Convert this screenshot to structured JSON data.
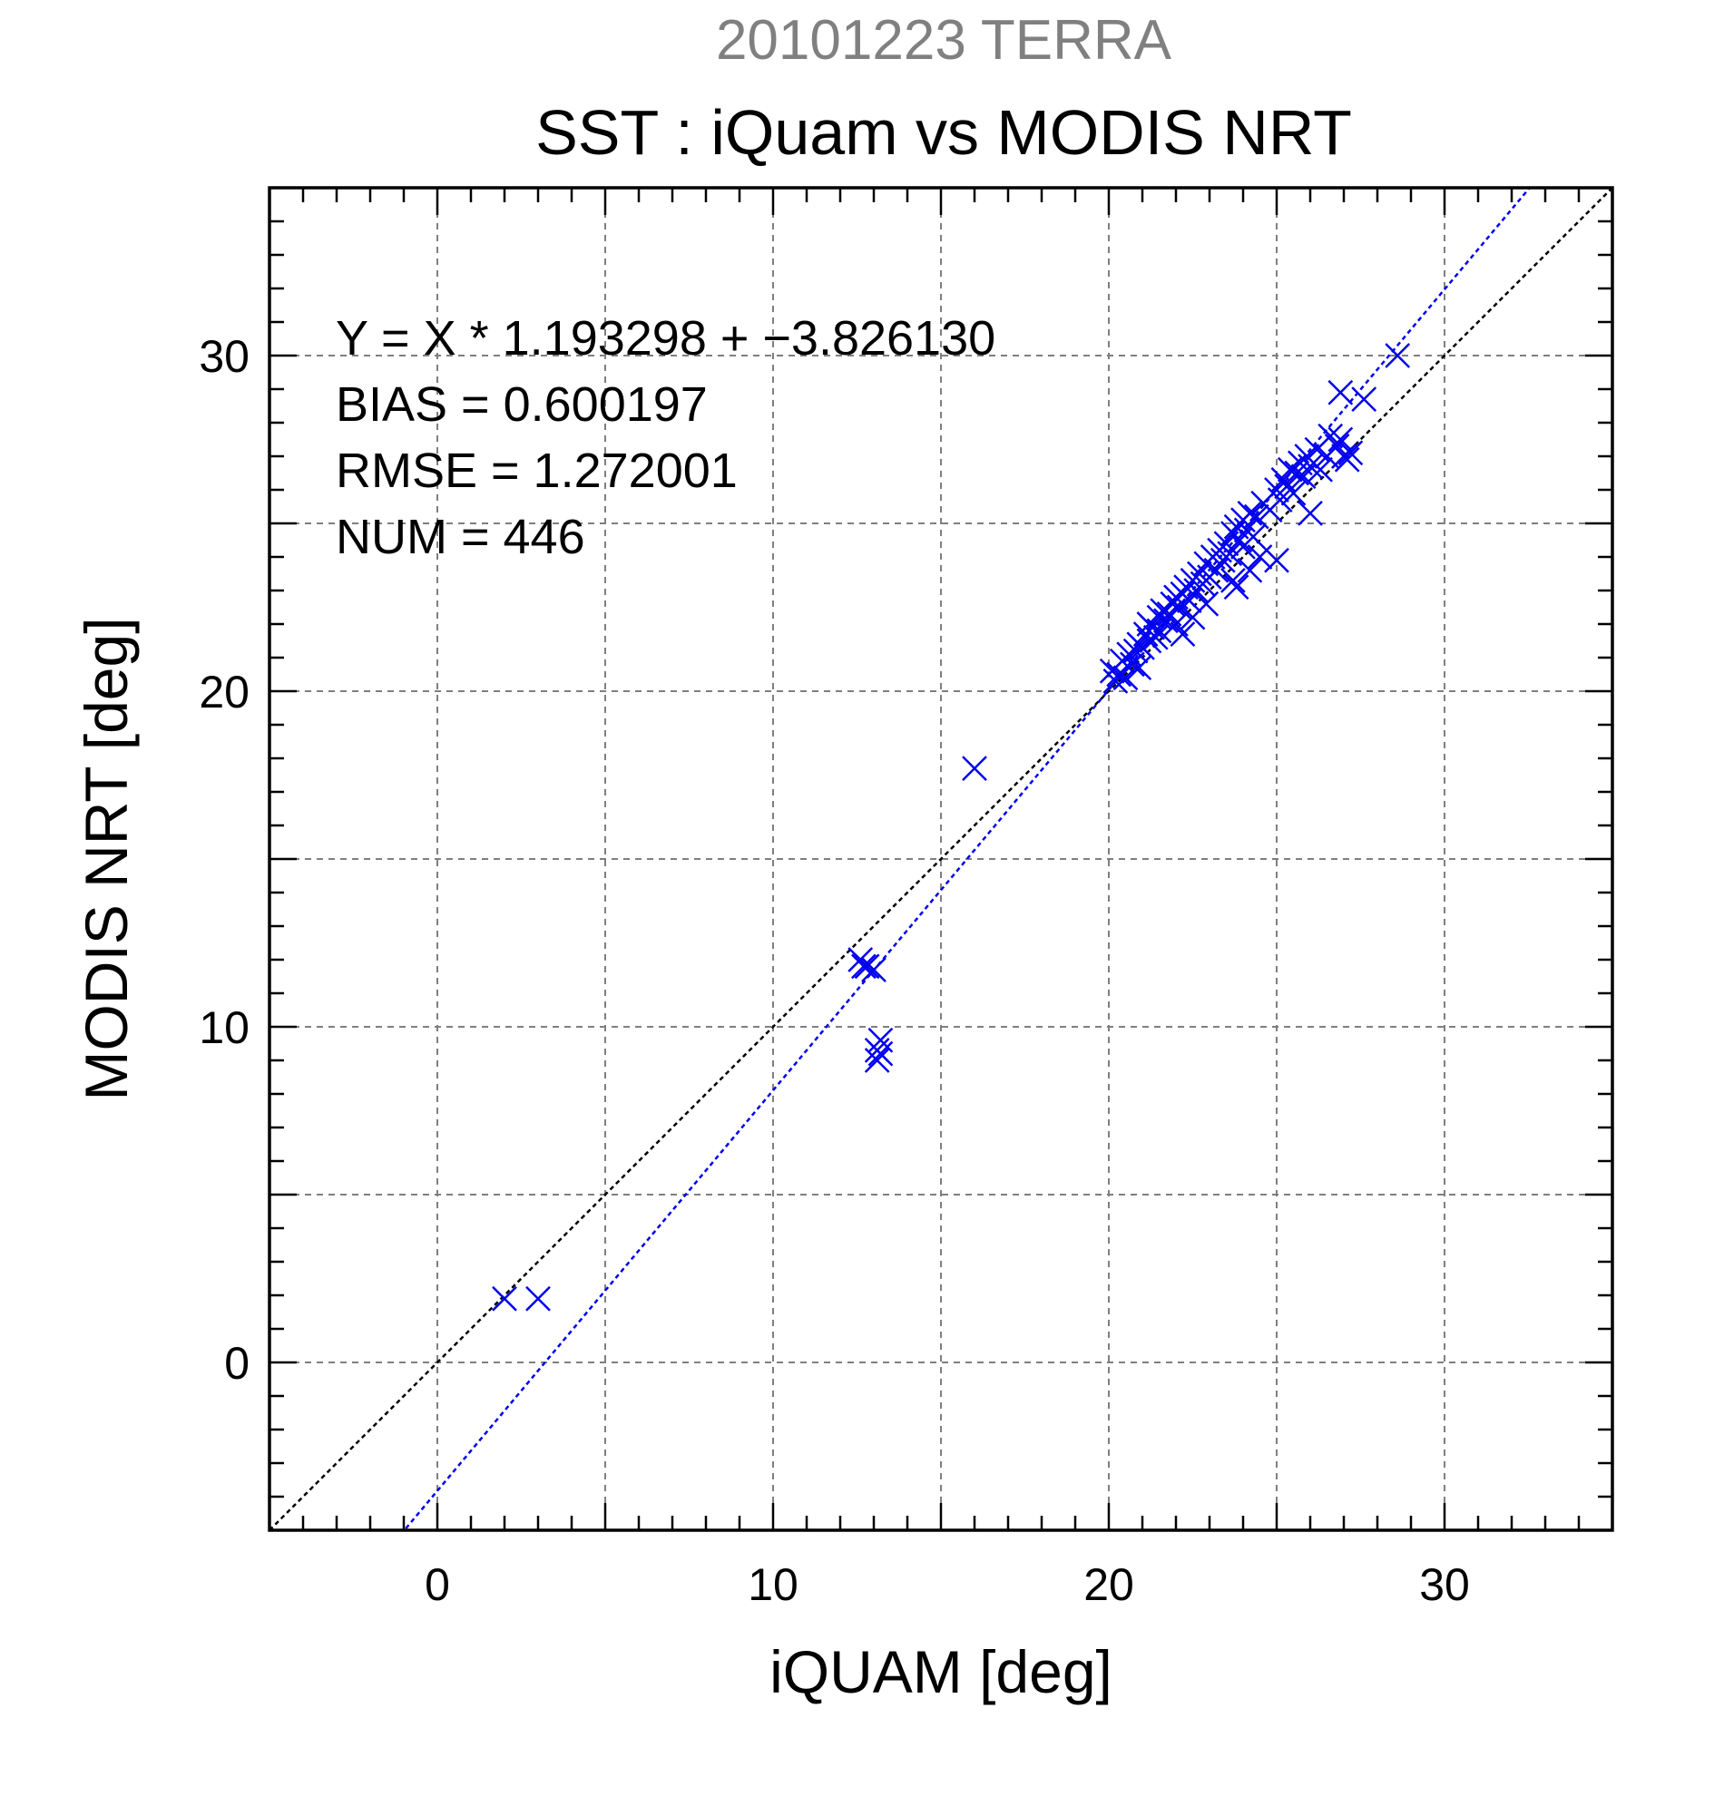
{
  "figure": {
    "suptitle": "20101223 TERRA",
    "title": "SST : iQuam vs MODIS NRT",
    "stats": [
      "Y = X * 1.193298 + −3.826130",
      "BIAS = 0.600197",
      "RMSE = 1.272001",
      "NUM = 446"
    ]
  },
  "chart_data": {
    "type": "scatter",
    "xlabel": "iQUAM [deg]",
    "ylabel": "MODIS NRT [deg]",
    "xlim": [
      -5,
      35
    ],
    "ylim": [
      -5,
      35
    ],
    "xticks": [
      0,
      10,
      20,
      30
    ],
    "yticks": [
      0,
      10,
      20,
      30
    ],
    "xtick_labels": [
      "0",
      "10",
      "20",
      "30"
    ],
    "ytick_labels": [
      "0",
      "10",
      "20",
      "30"
    ],
    "grid": true,
    "marker": "x",
    "marker_color": "#0000ee",
    "fit": {
      "slope": 1.193298,
      "intercept": -3.82613,
      "color": "#0000ee",
      "style": "dotted"
    },
    "identity_line": {
      "color": "#000000",
      "style": "dotted"
    },
    "points": [
      [
        2.0,
        1.9
      ],
      [
        3.0,
        1.9
      ],
      [
        12.6,
        12.0
      ],
      [
        12.7,
        11.8
      ],
      [
        12.8,
        11.8
      ],
      [
        13.0,
        11.7
      ],
      [
        13.1,
        9.0
      ],
      [
        13.1,
        9.3
      ],
      [
        13.2,
        9.6
      ],
      [
        13.2,
        9.2
      ],
      [
        16.0,
        17.7
      ],
      [
        20.1,
        20.6
      ],
      [
        20.2,
        20.3
      ],
      [
        20.3,
        20.5
      ],
      [
        20.4,
        20.9
      ],
      [
        20.5,
        20.4
      ],
      [
        20.6,
        21.1
      ],
      [
        20.7,
        20.8
      ],
      [
        20.8,
        21.2
      ],
      [
        20.9,
        20.7
      ],
      [
        20.9,
        21.4
      ],
      [
        21.0,
        21.3
      ],
      [
        21.1,
        21.7
      ],
      [
        21.2,
        21.5
      ],
      [
        21.2,
        22.0
      ],
      [
        21.3,
        21.9
      ],
      [
        21.4,
        21.6
      ],
      [
        21.5,
        22.2
      ],
      [
        21.5,
        21.8
      ],
      [
        21.6,
        22.4
      ],
      [
        21.7,
        22.1
      ],
      [
        21.8,
        22.3
      ],
      [
        21.9,
        22.6
      ],
      [
        22.0,
        22.0
      ],
      [
        22.0,
        22.8
      ],
      [
        22.1,
        22.5
      ],
      [
        22.2,
        22.9
      ],
      [
        22.2,
        21.7
      ],
      [
        22.3,
        23.1
      ],
      [
        22.4,
        22.7
      ],
      [
        22.5,
        23.3
      ],
      [
        22.5,
        22.2
      ],
      [
        22.6,
        23.0
      ],
      [
        22.7,
        23.5
      ],
      [
        22.8,
        23.2
      ],
      [
        22.9,
        23.8
      ],
      [
        22.9,
        22.6
      ],
      [
        23.0,
        23.4
      ],
      [
        23.1,
        24.0
      ],
      [
        23.2,
        23.6
      ],
      [
        23.3,
        24.2
      ],
      [
        23.4,
        23.9
      ],
      [
        23.5,
        24.4
      ],
      [
        23.6,
        24.1
      ],
      [
        23.7,
        24.7
      ],
      [
        23.7,
        23.3
      ],
      [
        23.8,
        24.9
      ],
      [
        23.9,
        24.5
      ],
      [
        24.0,
        25.1
      ],
      [
        24.0,
        24.3
      ],
      [
        24.1,
        24.8
      ],
      [
        24.2,
        25.3
      ],
      [
        24.3,
        24.6
      ],
      [
        24.4,
        25.2
      ],
      [
        24.5,
        24.0
      ],
      [
        23.8,
        23.1
      ],
      [
        24.2,
        23.6
      ],
      [
        25.0,
        23.9
      ],
      [
        24.6,
        25.6
      ],
      [
        24.8,
        25.4
      ],
      [
        25.0,
        26.0
      ],
      [
        25.1,
        25.7
      ],
      [
        25.2,
        26.3
      ],
      [
        25.3,
        26.1
      ],
      [
        25.4,
        26.6
      ],
      [
        25.5,
        25.9
      ],
      [
        25.6,
        26.5
      ],
      [
        25.7,
        26.8
      ],
      [
        25.8,
        26.4
      ],
      [
        25.9,
        27.0
      ],
      [
        26.0,
        25.3
      ],
      [
        26.0,
        26.7
      ],
      [
        26.2,
        27.2
      ],
      [
        26.3,
        26.6
      ],
      [
        26.5,
        27.0
      ],
      [
        26.6,
        27.6
      ],
      [
        26.8,
        27.3
      ],
      [
        26.9,
        27.5
      ],
      [
        27.0,
        27.0
      ],
      [
        27.1,
        26.9
      ],
      [
        27.2,
        27.1
      ],
      [
        26.9,
        28.9
      ],
      [
        27.6,
        28.7
      ],
      [
        28.6,
        30.0
      ]
    ]
  }
}
